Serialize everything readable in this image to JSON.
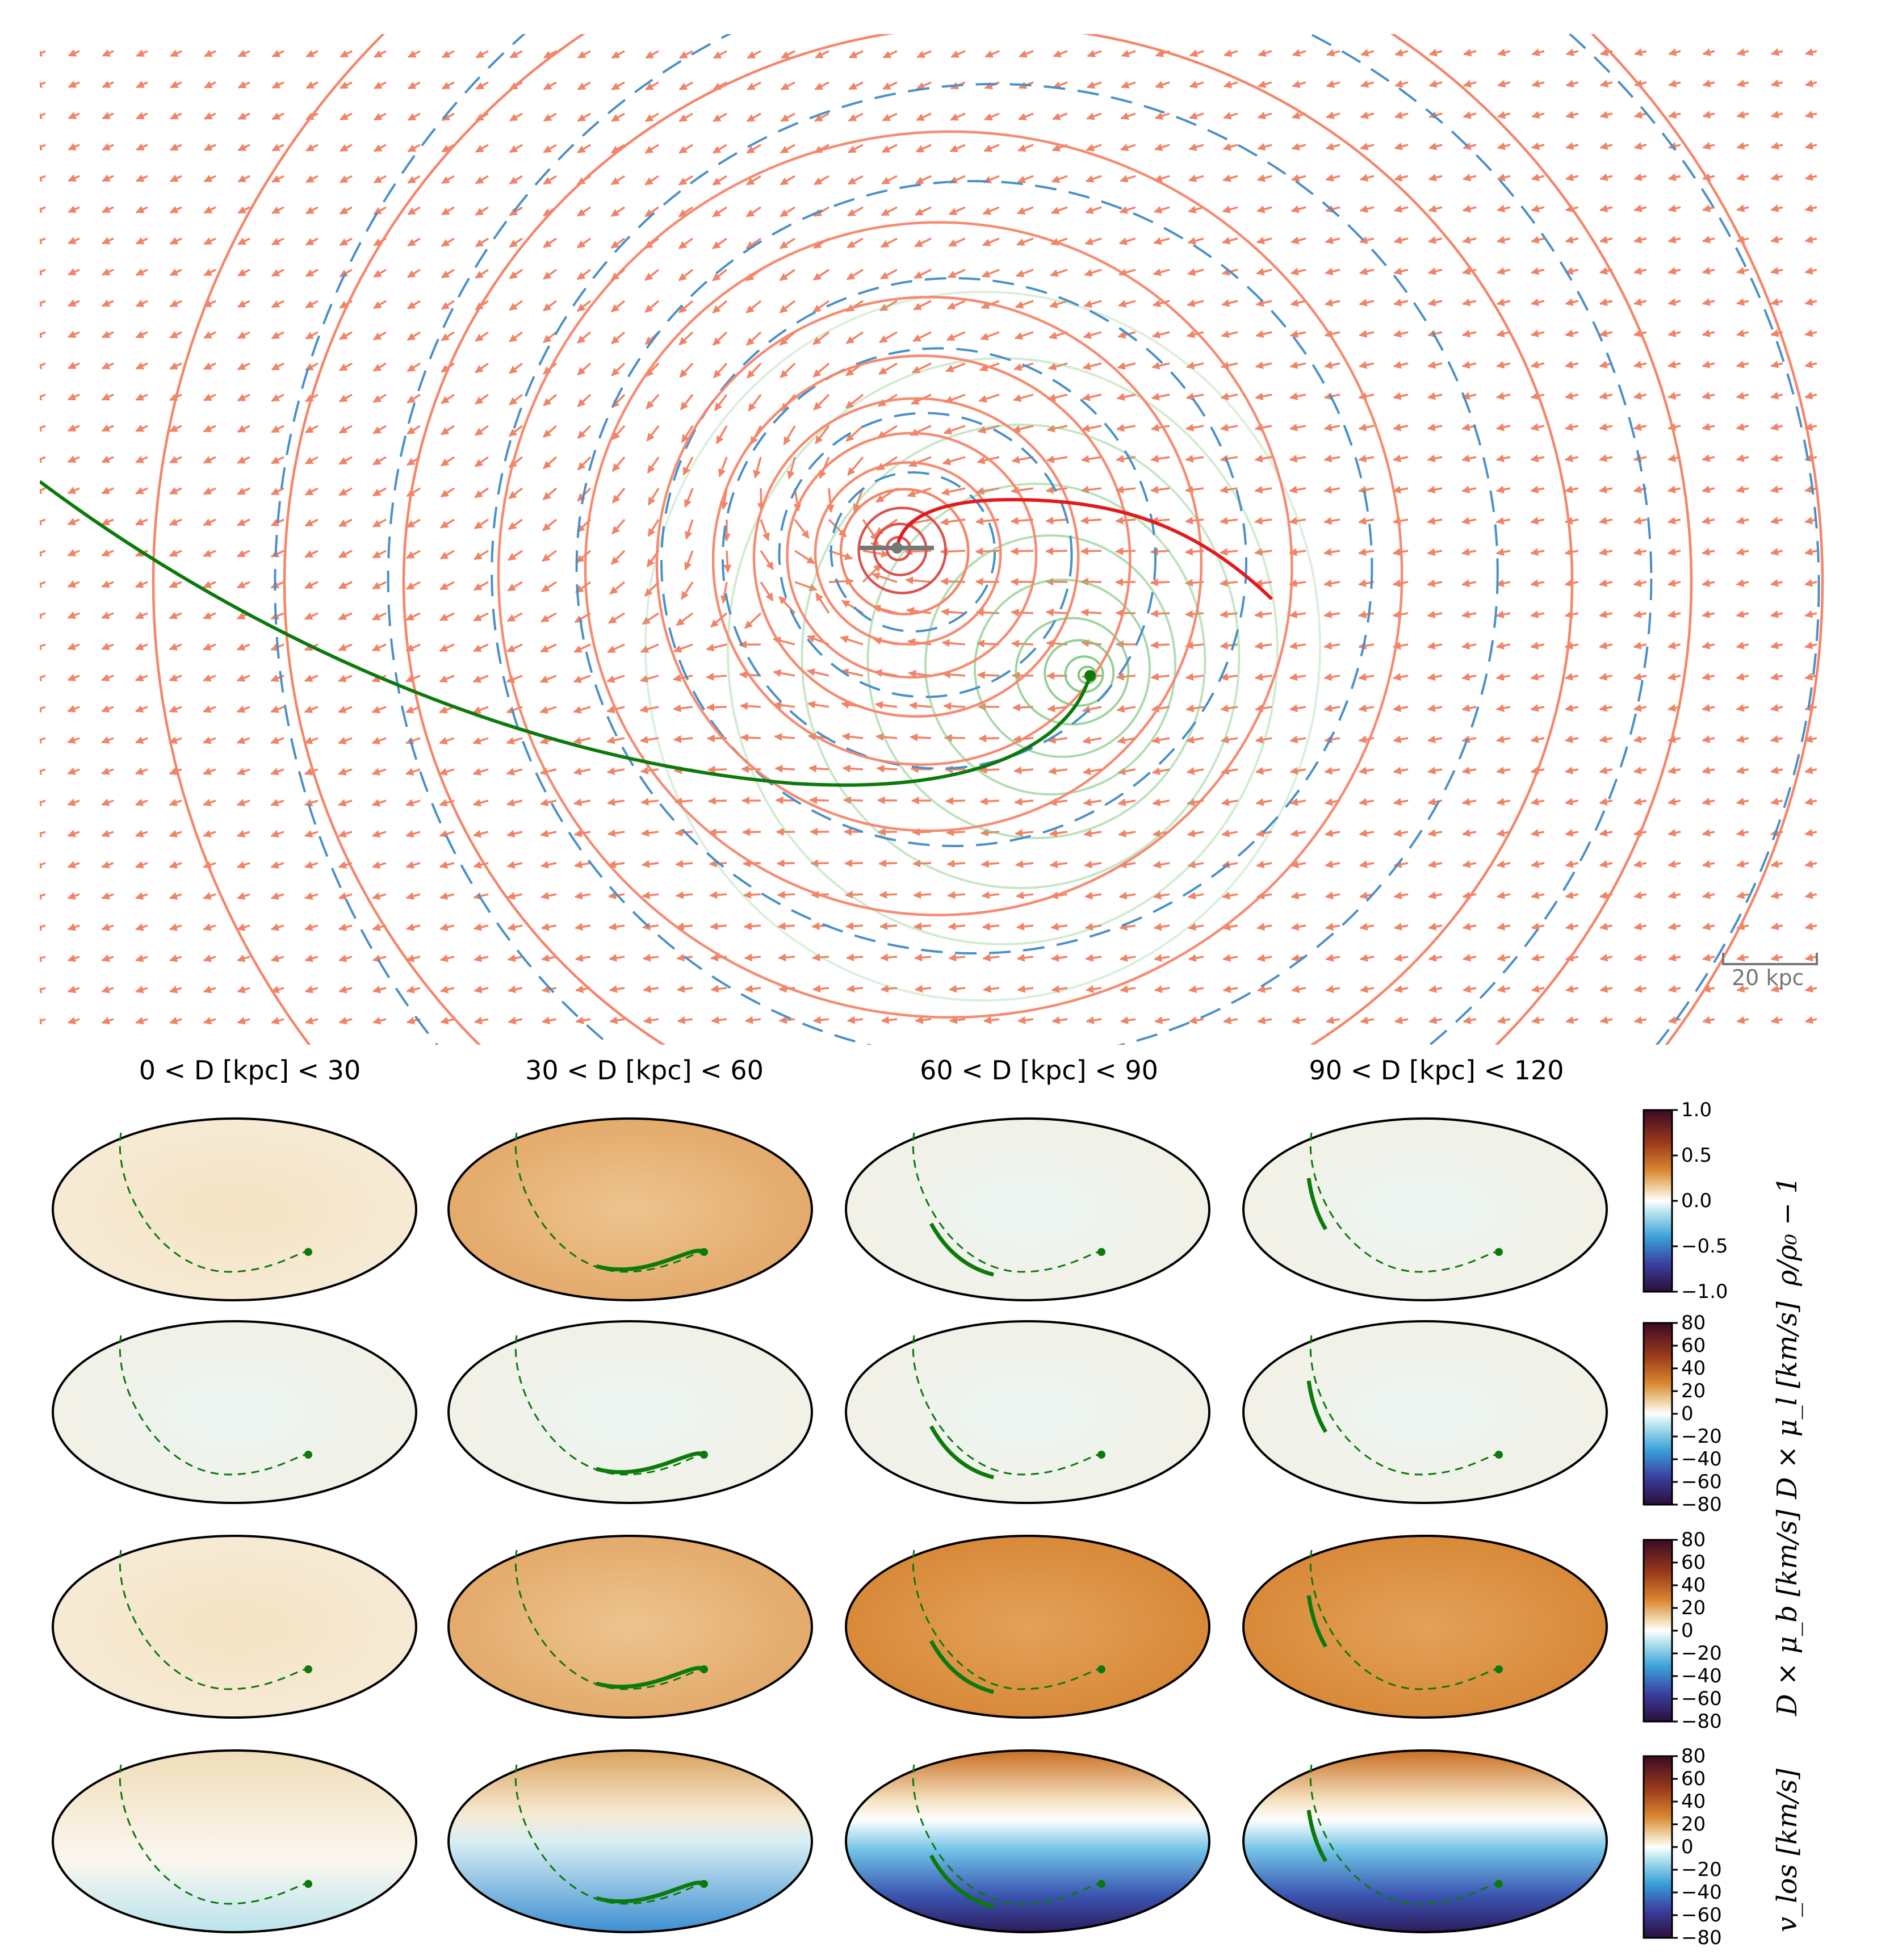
{
  "figure": {
    "scale_bar": {
      "label": "20 kpc"
    },
    "distance_bins": [
      {
        "label": "0 < D [kpc] < 30"
      },
      {
        "label": "30 < D [kpc] < 60"
      },
      {
        "label": "60 < D [kpc] < 90"
      },
      {
        "label": "90 < D [kpc] < 120"
      }
    ],
    "rows": [
      {
        "quantity": "density contrast",
        "colorbar_label": "ρ/ρ₀ − 1",
        "ticks": [
          "1.0",
          "0.5",
          "0.0",
          "−0.5",
          "−1.0"
        ]
      },
      {
        "quantity": "D × μ_l",
        "colorbar_label": "D × μ_l [km/s]",
        "ticks": [
          "80",
          "60",
          "40",
          "20",
          "0",
          "−20",
          "−40",
          "−60",
          "−80"
        ]
      },
      {
        "quantity": "D × μ_b",
        "colorbar_label": "D × μ_b [km/s]",
        "ticks": [
          "80",
          "60",
          "40",
          "20",
          "0",
          "−20",
          "−40",
          "−60",
          "−80"
        ]
      },
      {
        "quantity": "v_los",
        "colorbar_label": "v_los [km/s]",
        "ticks": [
          "80",
          "60",
          "40",
          "20",
          "0",
          "−20",
          "−40",
          "−60",
          "−80"
        ]
      }
    ],
    "colors": {
      "mw_orbit": "#e31a1c",
      "lmc_orbit": "#0b7a0b",
      "mw_contours": "#f4866a",
      "lmc_contours": "#7fc77f",
      "unperturbed_contours": "#4a90c8",
      "arrows": "#f08468"
    }
  }
}
